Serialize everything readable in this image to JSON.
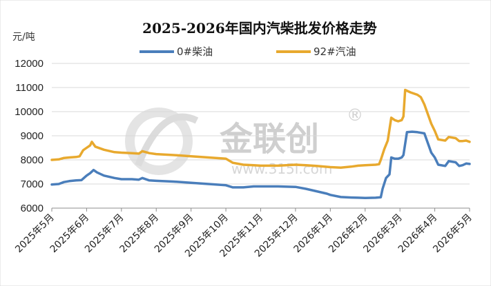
{
  "chart_data": {
    "type": "line",
    "title": "2025-2026年国内汽柴批发价格走势",
    "ylabel": "元/吨",
    "ylim": [
      6000,
      12000
    ],
    "yticks": [
      6000,
      7000,
      8000,
      9000,
      10000,
      11000,
      12000
    ],
    "x_categories": [
      "2025年5月",
      "2025年6月",
      "2025年7月",
      "2025年8月",
      "2025年9月",
      "2025年10月",
      "2025年11月",
      "2025年12月",
      "2026年1月",
      "2026年2月",
      "2026年3月",
      "2026年4月",
      "2026年5月"
    ],
    "grid": "horizontal",
    "legend_position": "top",
    "series": [
      {
        "name": "0#柴油",
        "color": "#4a7ebb",
        "points": [
          [
            0.0,
            6980
          ],
          [
            0.2,
            7000
          ],
          [
            0.35,
            7080
          ],
          [
            0.5,
            7120
          ],
          [
            0.7,
            7150
          ],
          [
            0.85,
            7160
          ],
          [
            1.0,
            7350
          ],
          [
            1.1,
            7450
          ],
          [
            1.2,
            7580
          ],
          [
            1.3,
            7480
          ],
          [
            1.5,
            7350
          ],
          [
            1.8,
            7250
          ],
          [
            2.0,
            7200
          ],
          [
            2.3,
            7200
          ],
          [
            2.5,
            7180
          ],
          [
            2.6,
            7250
          ],
          [
            2.8,
            7150
          ],
          [
            3.0,
            7130
          ],
          [
            3.5,
            7100
          ],
          [
            4.0,
            7050
          ],
          [
            4.5,
            7000
          ],
          [
            5.0,
            6950
          ],
          [
            5.2,
            6860
          ],
          [
            5.5,
            6860
          ],
          [
            5.8,
            6900
          ],
          [
            6.0,
            6900
          ],
          [
            6.5,
            6900
          ],
          [
            7.0,
            6880
          ],
          [
            7.3,
            6800
          ],
          [
            7.6,
            6700
          ],
          [
            7.9,
            6600
          ],
          [
            8.0,
            6550
          ],
          [
            8.3,
            6460
          ],
          [
            8.6,
            6440
          ],
          [
            8.8,
            6430
          ],
          [
            9.0,
            6420
          ],
          [
            9.3,
            6430
          ],
          [
            9.45,
            6450
          ],
          [
            9.5,
            6800
          ],
          [
            9.6,
            7250
          ],
          [
            9.7,
            7400
          ],
          [
            9.75,
            8100
          ],
          [
            9.85,
            8050
          ],
          [
            9.95,
            8050
          ],
          [
            10.05,
            8100
          ],
          [
            10.1,
            8200
          ],
          [
            10.2,
            9150
          ],
          [
            10.35,
            9170
          ],
          [
            10.5,
            9150
          ],
          [
            10.7,
            9100
          ],
          [
            10.8,
            8700
          ],
          [
            10.9,
            8300
          ],
          [
            11.0,
            8100
          ],
          [
            11.1,
            7800
          ],
          [
            11.3,
            7750
          ],
          [
            11.4,
            7950
          ],
          [
            11.6,
            7900
          ],
          [
            11.7,
            7750
          ],
          [
            11.8,
            7780
          ],
          [
            11.9,
            7850
          ],
          [
            12.0,
            7830
          ]
        ]
      },
      {
        "name": "92#汽油",
        "color": "#e8a92e",
        "points": [
          [
            0.0,
            8000
          ],
          [
            0.2,
            8020
          ],
          [
            0.35,
            8080
          ],
          [
            0.5,
            8100
          ],
          [
            0.7,
            8120
          ],
          [
            0.8,
            8150
          ],
          [
            0.9,
            8400
          ],
          [
            1.0,
            8500
          ],
          [
            1.1,
            8600
          ],
          [
            1.15,
            8750
          ],
          [
            1.25,
            8550
          ],
          [
            1.5,
            8420
          ],
          [
            1.8,
            8320
          ],
          [
            2.0,
            8300
          ],
          [
            2.3,
            8280
          ],
          [
            2.5,
            8260
          ],
          [
            2.6,
            8360
          ],
          [
            2.8,
            8280
          ],
          [
            3.0,
            8240
          ],
          [
            3.5,
            8200
          ],
          [
            4.0,
            8150
          ],
          [
            4.5,
            8100
          ],
          [
            5.0,
            8050
          ],
          [
            5.2,
            7880
          ],
          [
            5.5,
            7800
          ],
          [
            5.8,
            7780
          ],
          [
            6.0,
            7760
          ],
          [
            6.5,
            7760
          ],
          [
            7.0,
            7800
          ],
          [
            7.3,
            7780
          ],
          [
            7.6,
            7750
          ],
          [
            8.0,
            7700
          ],
          [
            8.3,
            7680
          ],
          [
            8.6,
            7720
          ],
          [
            8.8,
            7760
          ],
          [
            9.0,
            7780
          ],
          [
            9.3,
            7800
          ],
          [
            9.4,
            7820
          ],
          [
            9.45,
            8000
          ],
          [
            9.55,
            8450
          ],
          [
            9.65,
            8800
          ],
          [
            9.75,
            9750
          ],
          [
            9.85,
            9650
          ],
          [
            9.95,
            9600
          ],
          [
            10.05,
            9650
          ],
          [
            10.1,
            9800
          ],
          [
            10.15,
            10900
          ],
          [
            10.3,
            10800
          ],
          [
            10.5,
            10700
          ],
          [
            10.6,
            10600
          ],
          [
            10.7,
            10300
          ],
          [
            10.8,
            9900
          ],
          [
            10.9,
            9500
          ],
          [
            11.0,
            9200
          ],
          [
            11.1,
            8850
          ],
          [
            11.3,
            8800
          ],
          [
            11.4,
            8950
          ],
          [
            11.6,
            8900
          ],
          [
            11.7,
            8780
          ],
          [
            11.8,
            8780
          ],
          [
            11.9,
            8800
          ],
          [
            12.0,
            8750
          ]
        ]
      }
    ]
  },
  "watermark": {
    "text": "金联创",
    "registered": "®",
    "url": "www.315i.com"
  }
}
